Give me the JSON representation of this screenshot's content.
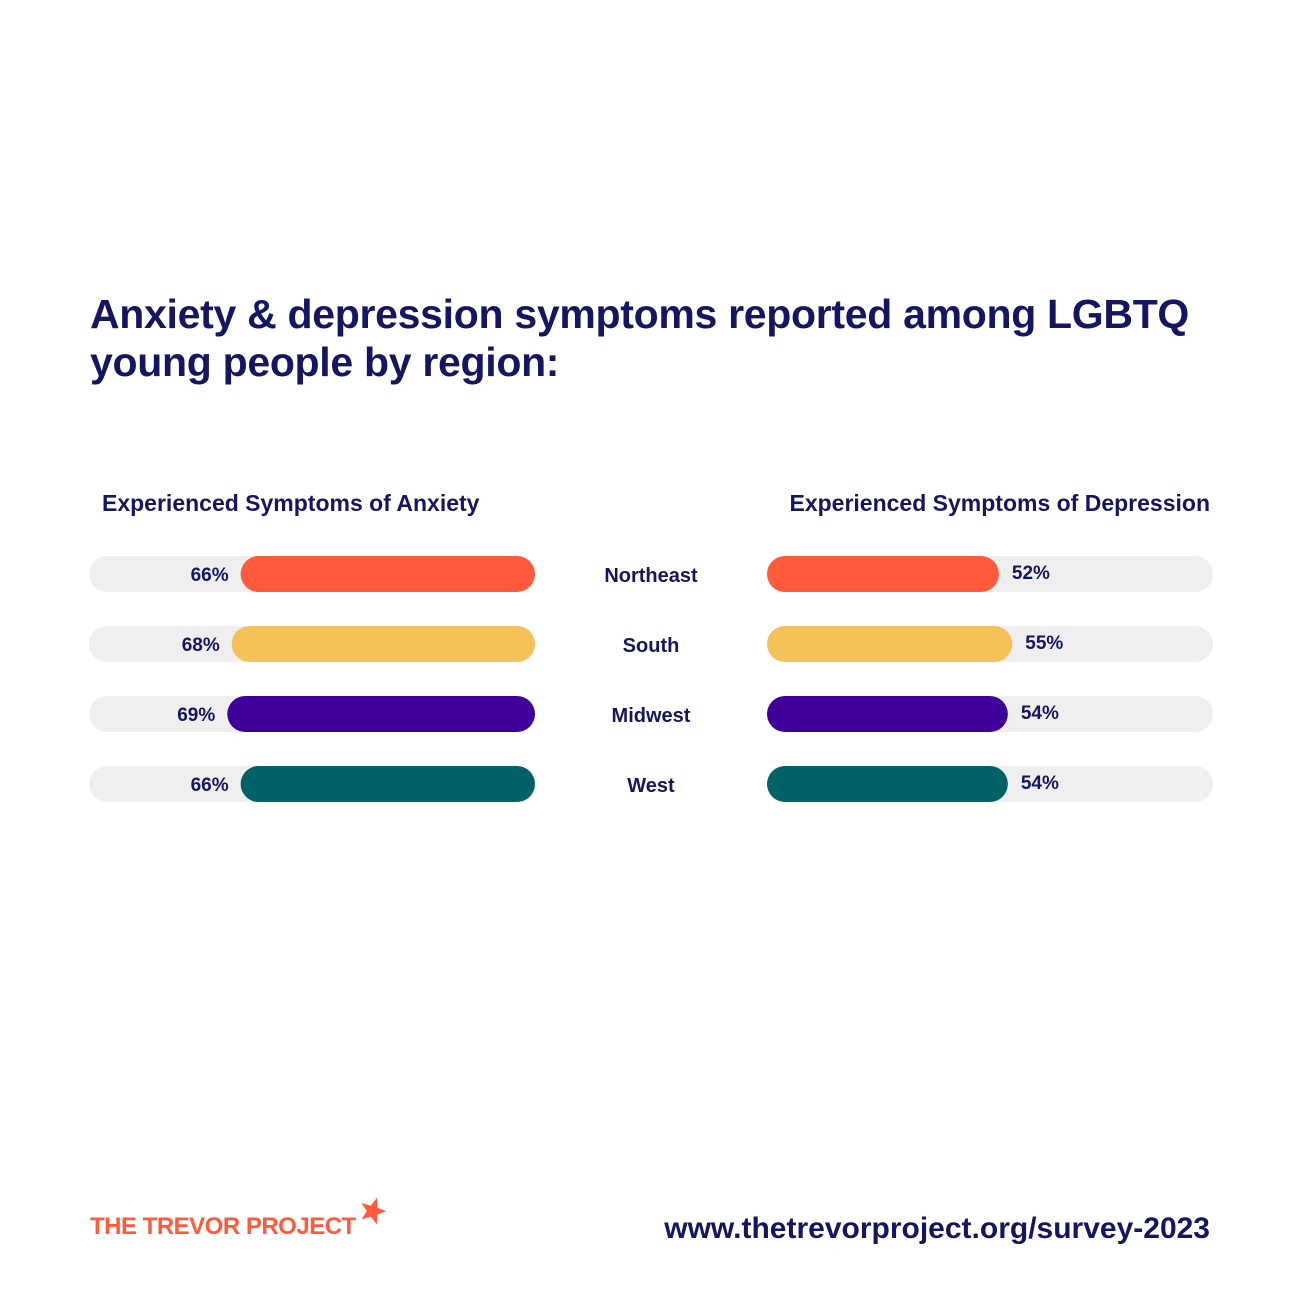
{
  "chart_data": {
    "type": "bar",
    "title": "Anxiety & depression symptoms reported among LGBTQ young people by region:",
    "categories": [
      "Northeast",
      "South",
      "Midwest",
      "West"
    ],
    "series": [
      {
        "name": "Experienced Symptoms of Anxiety",
        "values": [
          66,
          68,
          69,
          66
        ],
        "value_labels": [
          "66%",
          "68%",
          "69%",
          "66%"
        ]
      },
      {
        "name": "Experienced Symptoms of Depression",
        "values": [
          52,
          55,
          54,
          54
        ],
        "value_labels": [
          "52%",
          "55%",
          "54%",
          "54%"
        ]
      }
    ],
    "ylim": [
      0,
      100
    ],
    "unit": "%",
    "colors": [
      "#ff5a3c",
      "#f7c159",
      "#3f0099",
      "#006166"
    ],
    "track_color": "#efefef"
  },
  "footer": {
    "logo_text": "THE TREVOR PROJECT",
    "logo_icon": "star-icon",
    "url": "www.thetrevorproject.org/survey-2023"
  }
}
